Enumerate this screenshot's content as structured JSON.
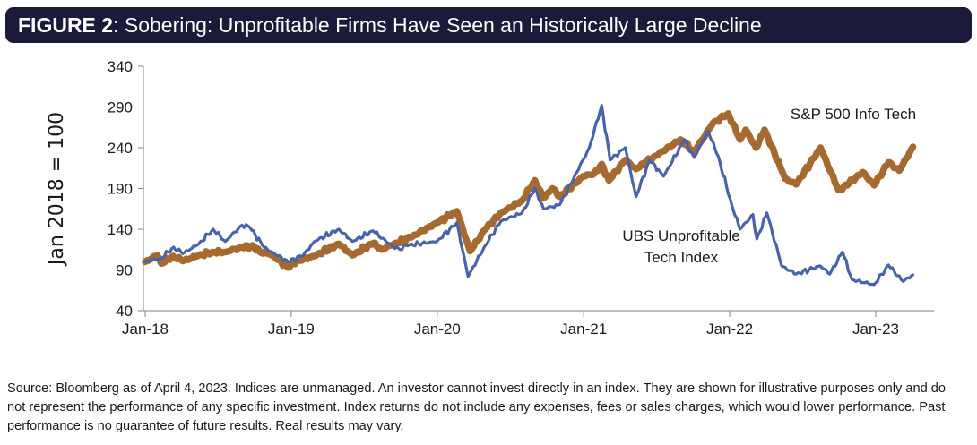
{
  "header": {
    "figure_label": "FIGURE 2",
    "title": ": Sobering: Unprofitable Firms Have Seen an Historically Large Decline"
  },
  "footnote": "Source: Bloomberg as of April 4, 2023. Indices are unmanaged. An investor cannot invest directly in an index. They are shown for illustrative purposes only and do not represent the performance of any specific investment. Index returns do not include any expenses, fees or sales charges, which would lower performance. Past performance is no guarantee of future results. Real results may vary.",
  "chart_data": {
    "type": "line",
    "title": "Sobering: Unprofitable Firms Have Seen an Historically Large Decline",
    "ylabel": "Jan 2018 = 100",
    "xlabel": "",
    "ylim": [
      40,
      340
    ],
    "yticks": [
      40,
      90,
      140,
      190,
      240,
      290,
      340
    ],
    "xlim": [
      "2018-01-01",
      "2023-04-04"
    ],
    "xticks": [
      "2018-01",
      "2019-01",
      "2020-01",
      "2021-01",
      "2022-01",
      "2023-01"
    ],
    "xtick_labels": [
      "Jan-18",
      "Jan-19",
      "Jan-20",
      "Jan-21",
      "Jan-22",
      "Jan-23"
    ],
    "grid": false,
    "legend": "none (direct labels)",
    "series": [
      {
        "name": "S&P 500 Info Tech",
        "label_lines": [
          "S&P 500 Info Tech"
        ],
        "color": "#a66a2e",
        "points": [
          [
            "2018-01-01",
            100
          ],
          [
            "2018-01-31",
            108
          ],
          [
            "2018-02-10",
            98
          ],
          [
            "2018-03-12",
            107
          ],
          [
            "2018-04-05",
            101
          ],
          [
            "2018-05-15",
            108
          ],
          [
            "2018-06-20",
            112
          ],
          [
            "2018-07-20",
            112
          ],
          [
            "2018-08-31",
            118
          ],
          [
            "2018-09-30",
            119
          ],
          [
            "2018-10-15",
            112
          ],
          [
            "2018-11-05",
            110
          ],
          [
            "2018-11-20",
            106
          ],
          [
            "2018-12-24",
            93
          ],
          [
            "2019-01-15",
            101
          ],
          [
            "2019-02-28",
            107
          ],
          [
            "2019-04-30",
            122
          ],
          [
            "2019-06-03",
            108
          ],
          [
            "2019-07-25",
            123
          ],
          [
            "2019-08-15",
            115
          ],
          [
            "2019-09-15",
            122
          ],
          [
            "2019-10-31",
            131
          ],
          [
            "2019-12-31",
            148
          ],
          [
            "2020-02-19",
            162
          ],
          [
            "2020-03-23",
            113
          ],
          [
            "2020-04-30",
            140
          ],
          [
            "2020-06-08",
            160
          ],
          [
            "2020-07-31",
            175
          ],
          [
            "2020-09-01",
            200
          ],
          [
            "2020-09-23",
            178
          ],
          [
            "2020-10-15",
            190
          ],
          [
            "2020-11-02",
            180
          ],
          [
            "2020-12-31",
            205
          ],
          [
            "2021-01-27",
            208
          ],
          [
            "2021-02-15",
            220
          ],
          [
            "2021-03-05",
            200
          ],
          [
            "2021-04-15",
            225
          ],
          [
            "2021-05-12",
            214
          ],
          [
            "2021-06-30",
            230
          ],
          [
            "2021-08-31",
            250
          ],
          [
            "2021-10-04",
            235
          ],
          [
            "2021-11-20",
            270
          ],
          [
            "2021-12-28",
            282
          ],
          [
            "2022-01-27",
            250
          ],
          [
            "2022-02-10",
            262
          ],
          [
            "2022-03-08",
            240
          ],
          [
            "2022-03-29",
            262
          ],
          [
            "2022-05-20",
            202
          ],
          [
            "2022-06-16",
            195
          ],
          [
            "2022-08-16",
            240
          ],
          [
            "2022-09-30",
            188
          ],
          [
            "2022-10-13",
            192
          ],
          [
            "2022-11-30",
            210
          ],
          [
            "2022-12-28",
            194
          ],
          [
            "2023-02-02",
            222
          ],
          [
            "2023-03-01",
            212
          ],
          [
            "2023-04-04",
            241
          ]
        ]
      },
      {
        "name": "UBS Unprofitable Tech Index",
        "label_lines": [
          "UBS Unprofitable",
          "Tech Index"
        ],
        "color": "#4763b0",
        "points": [
          [
            "2018-01-01",
            100
          ],
          [
            "2018-02-09",
            104
          ],
          [
            "2018-03-13",
            118
          ],
          [
            "2018-04-05",
            110
          ],
          [
            "2018-05-15",
            122
          ],
          [
            "2018-06-20",
            140
          ],
          [
            "2018-07-20",
            125
          ],
          [
            "2018-08-31",
            145
          ],
          [
            "2018-09-20",
            142
          ],
          [
            "2018-10-25",
            118
          ],
          [
            "2018-11-20",
            110
          ],
          [
            "2018-12-24",
            100
          ],
          [
            "2019-01-31",
            108
          ],
          [
            "2019-02-28",
            125
          ],
          [
            "2019-04-30",
            140
          ],
          [
            "2019-06-03",
            125
          ],
          [
            "2019-07-25",
            138
          ],
          [
            "2019-08-31",
            123
          ],
          [
            "2019-09-30",
            115
          ],
          [
            "2019-10-15",
            120
          ],
          [
            "2019-12-31",
            125
          ],
          [
            "2020-02-19",
            148
          ],
          [
            "2020-03-18",
            82
          ],
          [
            "2020-04-30",
            120
          ],
          [
            "2020-06-08",
            150
          ],
          [
            "2020-07-31",
            160
          ],
          [
            "2020-09-01",
            190
          ],
          [
            "2020-09-23",
            165
          ],
          [
            "2020-11-02",
            170
          ],
          [
            "2020-12-15",
            210
          ],
          [
            "2021-01-15",
            240
          ],
          [
            "2021-02-15",
            292
          ],
          [
            "2021-03-08",
            225
          ],
          [
            "2021-04-15",
            240
          ],
          [
            "2021-05-12",
            180
          ],
          [
            "2021-06-15",
            225
          ],
          [
            "2021-07-20",
            205
          ],
          [
            "2021-09-10",
            250
          ],
          [
            "2021-10-04",
            228
          ],
          [
            "2021-11-08",
            260
          ],
          [
            "2021-12-03",
            230
          ],
          [
            "2022-01-06",
            170
          ],
          [
            "2022-01-27",
            140
          ],
          [
            "2022-02-28",
            158
          ],
          [
            "2022-03-10",
            128
          ],
          [
            "2022-04-04",
            160
          ],
          [
            "2022-05-11",
            95
          ],
          [
            "2022-06-16",
            85
          ],
          [
            "2022-08-15",
            95
          ],
          [
            "2022-09-08",
            85
          ],
          [
            "2022-10-10",
            112
          ],
          [
            "2022-11-03",
            78
          ],
          [
            "2022-12-28",
            72
          ],
          [
            "2023-02-02",
            96
          ],
          [
            "2023-03-10",
            76
          ],
          [
            "2023-04-04",
            84
          ]
        ]
      }
    ]
  }
}
